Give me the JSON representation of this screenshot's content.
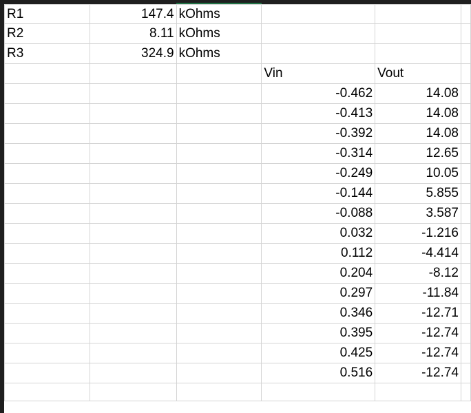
{
  "params": [
    {
      "name": "R1",
      "value": "147.4",
      "unit": "kOhms"
    },
    {
      "name": "R2",
      "value": "8.11",
      "unit": "kOhms"
    },
    {
      "name": "R3",
      "value": "324.9",
      "unit": "kOhms"
    }
  ],
  "headers": {
    "vin": "Vin",
    "vout": "Vout"
  },
  "rows": [
    {
      "vin": "-0.462",
      "vout": "14.08"
    },
    {
      "vin": "-0.413",
      "vout": "14.08"
    },
    {
      "vin": "-0.392",
      "vout": "14.08"
    },
    {
      "vin": "-0.314",
      "vout": "12.65"
    },
    {
      "vin": "-0.249",
      "vout": "10.05"
    },
    {
      "vin": "-0.144",
      "vout": "5.855"
    },
    {
      "vin": "-0.088",
      "vout": "3.587"
    },
    {
      "vin": "0.032",
      "vout": "-1.216"
    },
    {
      "vin": "0.112",
      "vout": "-4.414"
    },
    {
      "vin": "0.204",
      "vout": "-8.12"
    },
    {
      "vin": "0.297",
      "vout": "-11.84"
    },
    {
      "vin": "0.346",
      "vout": "-12.71"
    },
    {
      "vin": "0.395",
      "vout": "-12.74"
    },
    {
      "vin": "0.425",
      "vout": "-12.74"
    },
    {
      "vin": "0.516",
      "vout": "-12.74"
    }
  ]
}
